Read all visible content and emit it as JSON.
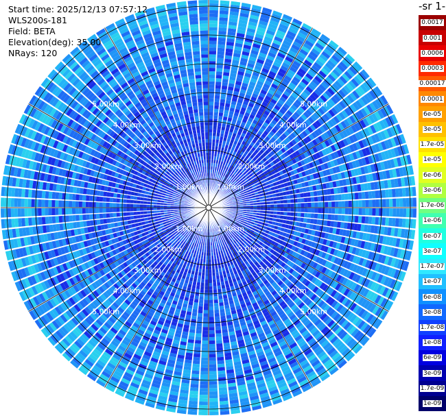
{
  "header": {
    "start_time": "Start time: 2025/12/13 07:57:12",
    "instrument": "WLS200s-181",
    "field": "Field: BETA",
    "elevation": "Elevation(deg): 35.00",
    "nrays": "NRays: 120"
  },
  "colorbar": {
    "unit_label": "-1 sr-",
    "levels": [
      "0.0017",
      "0.001",
      "0.0006",
      "0.0003",
      "0.00017",
      "0.0001",
      "6e-05",
      "3e-05",
      "1.7e-05",
      "1e-05",
      "6e-06",
      "3e-06",
      "1.7e-06",
      "1e-06",
      "6e-07",
      "3e-07",
      "1.7e-07",
      "1e-07",
      "6e-08",
      "3e-08",
      "1.7e-08",
      "1e-08",
      "6e-09",
      "3e-09",
      "1.7e-09",
      "1e-09"
    ],
    "colors": [
      "#9b0000",
      "#c80000",
      "#e80000",
      "#ff2a00",
      "#ff5a00",
      "#ff8800",
      "#ffa000",
      "#ffc000",
      "#ffe000",
      "#ffff00",
      "#e0ff20",
      "#b0ff40",
      "#70ff80",
      "#40ffb0",
      "#20ffe0",
      "#10ffff",
      "#30e8ff",
      "#20c0ff",
      "#1090ff",
      "#1068ff",
      "#1040ff",
      "#1020ff",
      "#0000e0",
      "#0000b0",
      "#000090",
      "#00006a"
    ]
  },
  "range_rings": {
    "labels": [
      "1.00km",
      "2.00km",
      "3.00km",
      "4.00km",
      "5.00km"
    ]
  },
  "image": {
    "colormap": "jet",
    "rays": 120
  }
}
